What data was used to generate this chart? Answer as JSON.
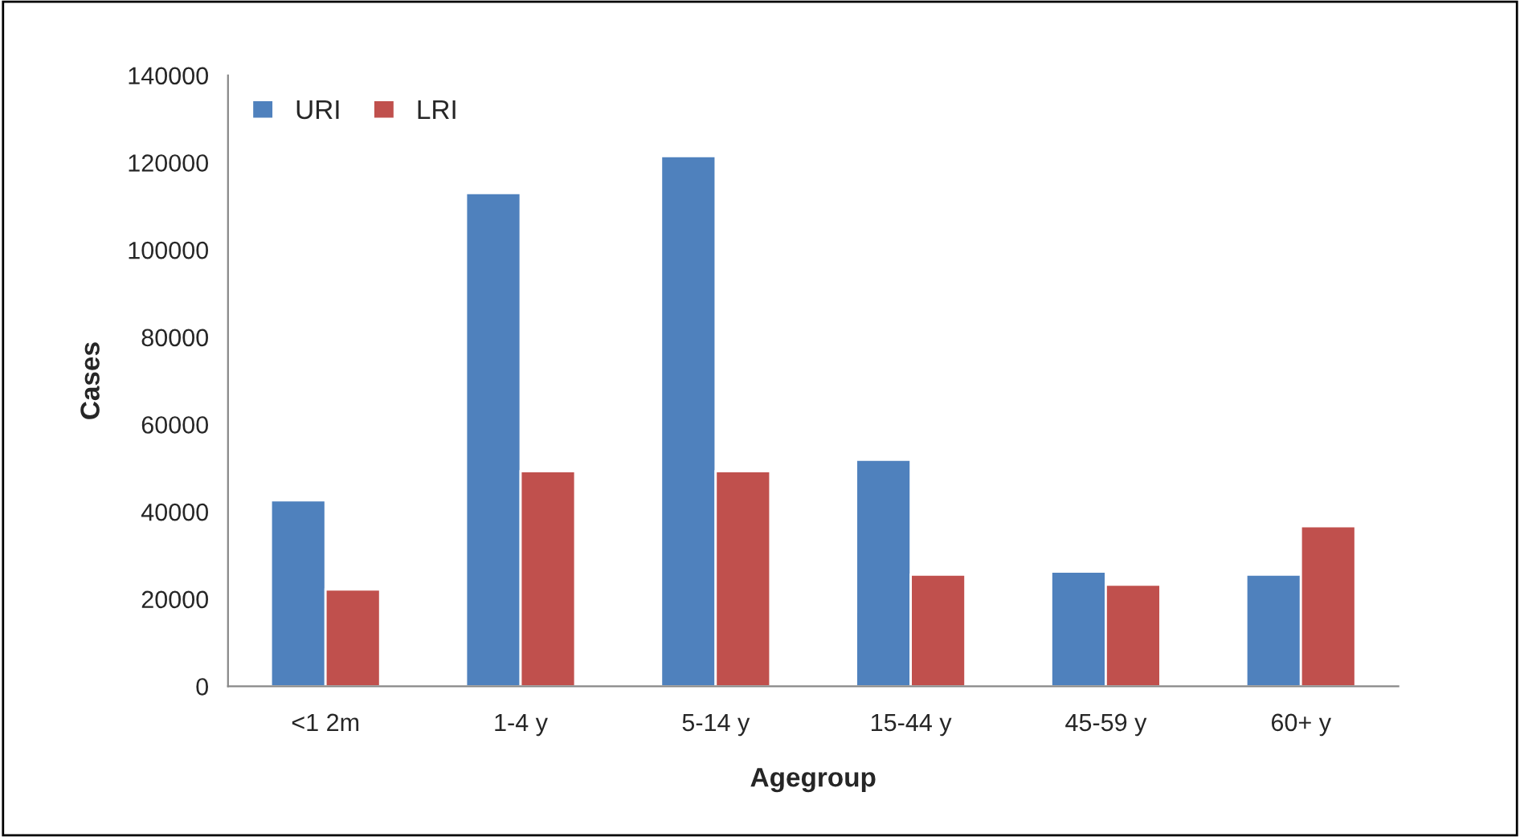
{
  "chart_data": {
    "type": "bar",
    "xlabel": "Agegroup",
    "ylabel": "Cases",
    "categories": [
      "<1 2m",
      "1-4 y",
      "5-14 y",
      "15-44 y",
      "45-59 y",
      "60+ y"
    ],
    "series": [
      {
        "name": "URI",
        "color": "#4f81bd",
        "values": [
          42600,
          113000,
          121500,
          51900,
          26300,
          25600
        ]
      },
      {
        "name": "LRI",
        "color": "#c0504d",
        "values": [
          22200,
          49300,
          49300,
          25600,
          23300,
          36700
        ]
      }
    ],
    "ylim": [
      0,
      140000
    ],
    "yticks": [
      0,
      20000,
      40000,
      60000,
      80000,
      100000,
      120000,
      140000
    ],
    "grid": false,
    "legend": "top left"
  }
}
